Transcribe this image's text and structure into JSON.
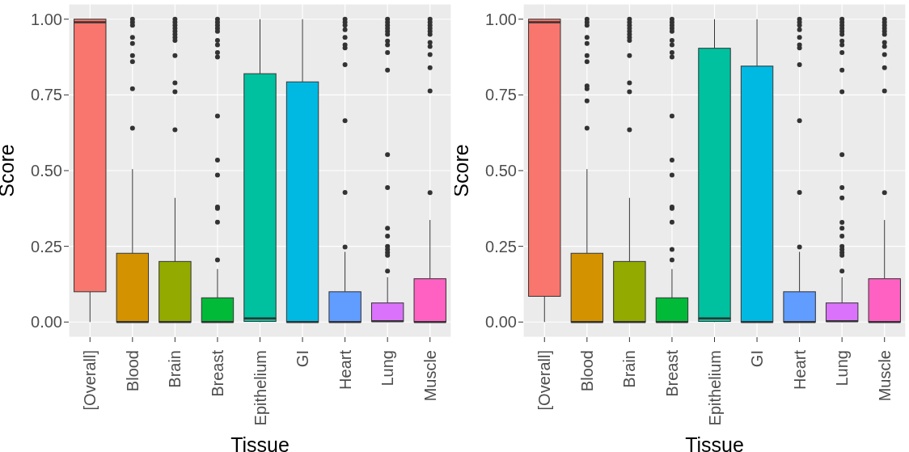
{
  "chart_data": [
    {
      "type": "box",
      "xlabel": "Tissue",
      "ylabel": "Score",
      "categories": [
        "[Overall]",
        "Blood",
        "Brain",
        "Breast",
        "Epithelium",
        "GI",
        "Heart",
        "Lung",
        "Muscle"
      ],
      "colors": [
        "#f8766d",
        "#d39200",
        "#93aa00",
        "#00ba38",
        "#00c19f",
        "#00b9e3",
        "#619cff",
        "#db72fb",
        "#ff61c3"
      ],
      "boxes": [
        {
          "low": 0,
          "q1": 0.1,
          "median": 0.99,
          "q3": 1.0,
          "high": 1.0
        },
        {
          "low": 0,
          "q1": 0,
          "median": 0,
          "q3": 0.227,
          "high": 0.505,
          "outliers": [
            1.0,
            0.99,
            0.98,
            0.94,
            0.92,
            0.88,
            0.86,
            0.77,
            0.64
          ]
        },
        {
          "low": 0,
          "q1": 0,
          "median": 0,
          "q3": 0.2,
          "high": 0.41,
          "outliers": [
            1.0,
            0.99,
            0.98,
            0.97,
            0.96,
            0.95,
            0.94,
            0.93,
            0.88,
            0.79,
            0.76,
            0.635
          ]
        },
        {
          "low": 0,
          "q1": 0,
          "median": 0,
          "q3": 0.08,
          "high": 0.175,
          "outliers": [
            1.0,
            0.99,
            0.98,
            0.97,
            0.96,
            0.93,
            0.915,
            0.89,
            0.875,
            0.68,
            0.535,
            0.485,
            0.38,
            0.375,
            0.33,
            0.205
          ]
        },
        {
          "low": 0,
          "q1": 0.002,
          "median": 0.012,
          "q3": 0.82,
          "high": 1.0
        },
        {
          "low": 0,
          "q1": 0,
          "median": 0,
          "q3": 0.793,
          "high": 1.0
        },
        {
          "low": 0,
          "q1": 0,
          "median": 0,
          "q3": 0.1,
          "high": 0.232,
          "outliers": [
            1.0,
            0.99,
            0.98,
            0.965,
            0.94,
            0.915,
            0.905,
            0.85,
            0.665,
            0.428,
            0.248
          ]
        },
        {
          "low": 0,
          "q1": 0.002,
          "median": 0.003,
          "q3": 0.063,
          "high": 0.148,
          "outliers": [
            1.0,
            0.99,
            0.98,
            0.97,
            0.96,
            0.95,
            0.928,
            0.915,
            0.89,
            0.832,
            0.553,
            0.444,
            0.31,
            0.284,
            0.25,
            0.24,
            0.23,
            0.22,
            0.168
          ]
        },
        {
          "low": 0,
          "q1": 0,
          "median": 0,
          "q3": 0.143,
          "high": 0.337,
          "outliers": [
            1.0,
            0.99,
            0.98,
            0.97,
            0.96,
            0.95,
            0.923,
            0.91,
            0.883,
            0.84,
            0.763,
            0.427
          ]
        }
      ],
      "ylim": [
        -0.05,
        1.05
      ],
      "yticks": [
        {
          "value": 0,
          "label": "0.00"
        },
        {
          "value": 0.25,
          "label": "0.25"
        },
        {
          "value": 0.5,
          "label": "0.50"
        },
        {
          "value": 0.75,
          "label": "0.75"
        },
        {
          "value": 1,
          "label": "1.00"
        }
      ],
      "grid": true
    },
    {
      "type": "box",
      "xlabel": "Tissue",
      "ylabel": "Score",
      "categories": [
        "[Overall]",
        "Blood",
        "Brain",
        "Breast",
        "Epithelium",
        "GI",
        "Heart",
        "Lung",
        "Muscle"
      ],
      "colors": [
        "#f8766d",
        "#d39200",
        "#93aa00",
        "#00ba38",
        "#00c19f",
        "#00b9e3",
        "#619cff",
        "#db72fb",
        "#ff61c3"
      ],
      "boxes": [
        {
          "low": 0,
          "q1": 0.085,
          "median": 0.99,
          "q3": 1.0,
          "high": 1.0
        },
        {
          "low": 0,
          "q1": 0,
          "median": 0,
          "q3": 0.227,
          "high": 0.505,
          "outliers": [
            1.0,
            0.99,
            0.98,
            0.94,
            0.92,
            0.88,
            0.86,
            0.78,
            0.77,
            0.73,
            0.64
          ]
        },
        {
          "low": 0,
          "q1": 0,
          "median": 0,
          "q3": 0.2,
          "high": 0.41,
          "outliers": [
            1.0,
            0.99,
            0.98,
            0.97,
            0.96,
            0.95,
            0.94,
            0.93,
            0.88,
            0.79,
            0.76,
            0.635
          ]
        },
        {
          "low": 0,
          "q1": 0,
          "median": 0,
          "q3": 0.08,
          "high": 0.175,
          "outliers": [
            1.0,
            0.99,
            0.98,
            0.97,
            0.96,
            0.93,
            0.915,
            0.89,
            0.875,
            0.68,
            0.535,
            0.485,
            0.38,
            0.375,
            0.33,
            0.24,
            0.205
          ]
        },
        {
          "low": 0,
          "q1": 0.002,
          "median": 0.012,
          "q3": 0.904,
          "high": 1.0
        },
        {
          "low": 0,
          "q1": 0,
          "median": 0,
          "q3": 0.845,
          "high": 1.0
        },
        {
          "low": 0,
          "q1": 0,
          "median": 0,
          "q3": 0.1,
          "high": 0.232,
          "outliers": [
            1.0,
            0.99,
            0.98,
            0.965,
            0.94,
            0.915,
            0.905,
            0.85,
            0.665,
            0.428,
            0.248
          ]
        },
        {
          "low": 0,
          "q1": 0.002,
          "median": 0.003,
          "q3": 0.063,
          "high": 0.148,
          "outliers": [
            1.0,
            0.99,
            0.98,
            0.97,
            0.96,
            0.95,
            0.928,
            0.915,
            0.89,
            0.832,
            0.76,
            0.553,
            0.444,
            0.41,
            0.329,
            0.31,
            0.284,
            0.25,
            0.24,
            0.23,
            0.22,
            0.168
          ]
        },
        {
          "low": 0,
          "q1": 0,
          "median": 0,
          "q3": 0.143,
          "high": 0.337,
          "outliers": [
            1.0,
            0.99,
            0.98,
            0.97,
            0.96,
            0.95,
            0.923,
            0.91,
            0.883,
            0.84,
            0.763,
            0.427
          ]
        }
      ],
      "ylim": [
        -0.05,
        1.05
      ],
      "yticks": [
        {
          "value": 0,
          "label": "0.00"
        },
        {
          "value": 0.25,
          "label": "0.25"
        },
        {
          "value": 0.5,
          "label": "0.50"
        },
        {
          "value": 0.75,
          "label": "0.75"
        },
        {
          "value": 1,
          "label": "1.00"
        }
      ],
      "grid": true
    }
  ]
}
